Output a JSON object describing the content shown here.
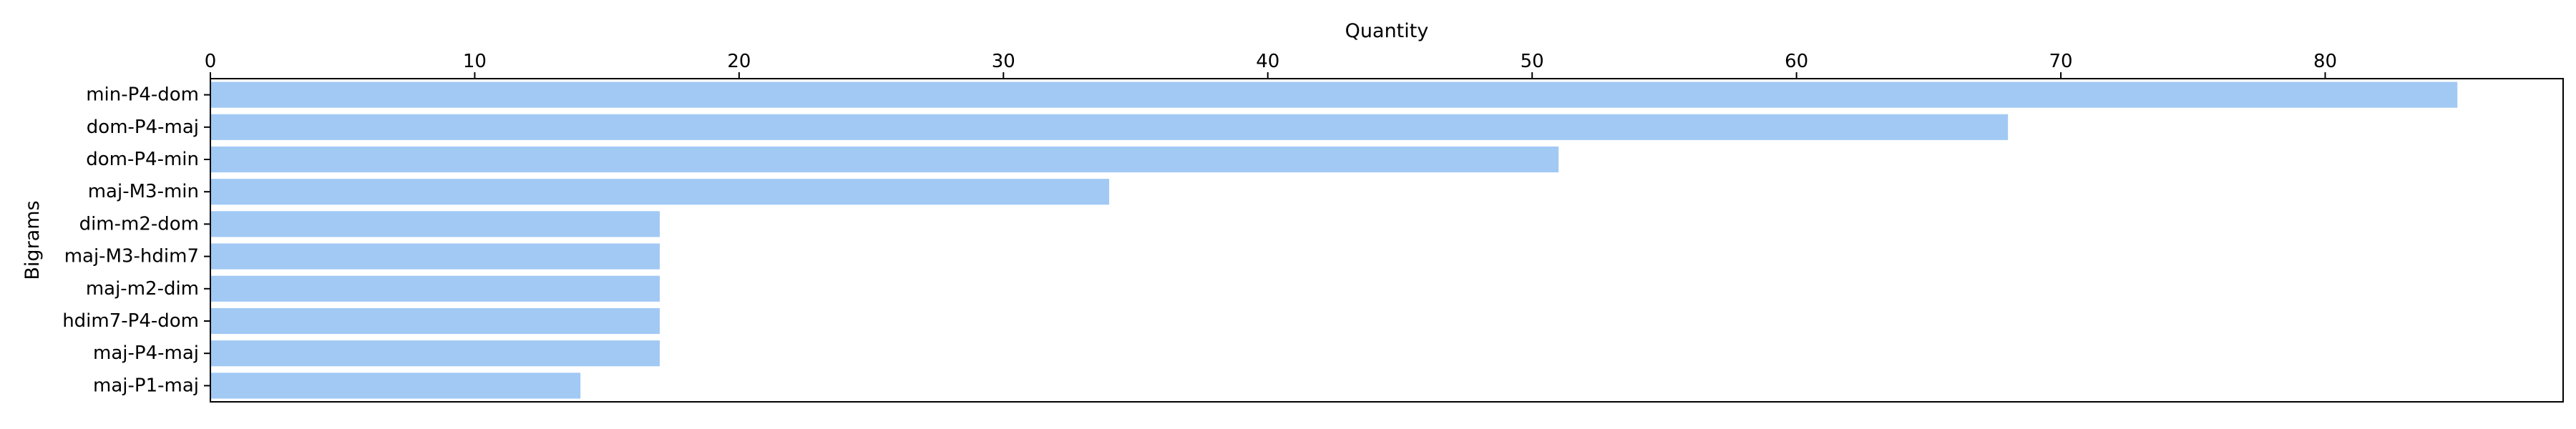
{
  "chart_data": {
    "type": "bar",
    "orientation": "horizontal",
    "xlabel": "Quantity",
    "ylabel": "Bigrams",
    "xaxis_position": "top",
    "xlim": [
      0,
      89
    ],
    "xticks": [
      0,
      10,
      20,
      30,
      40,
      50,
      60,
      70,
      80
    ],
    "categories": [
      "min-P4-dom",
      "dom-P4-maj",
      "dom-P4-min",
      "maj-M3-min",
      "dim-m2-dom",
      "maj-M3-hdim7",
      "maj-m2-dim",
      "hdim7-P4-dom",
      "maj-P4-maj",
      "maj-P1-maj"
    ],
    "values": [
      85,
      68,
      51,
      34,
      17,
      17,
      17,
      17,
      17,
      14
    ],
    "bar_color": "#a1c9f4",
    "grid": false,
    "legend": false
  }
}
